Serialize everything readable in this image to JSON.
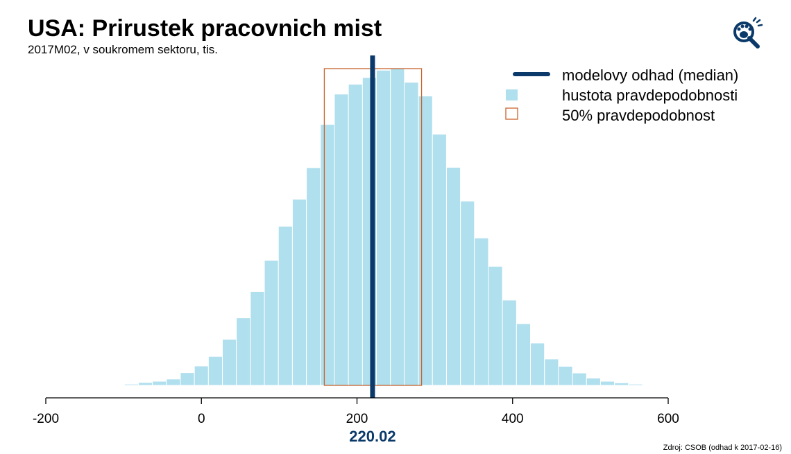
{
  "header": {
    "title": "USA: Prirustek pracovnich mist",
    "subtitle": "2017M02, v soukromem sektoru, tis."
  },
  "footer": {
    "source": "Zdroj: CSOB (odhad k 2017-02-16)"
  },
  "logo": {
    "icon": "bear-paw-magnifier-icon",
    "color": "#0b3a6a"
  },
  "colors": {
    "bars": "#b0dfee",
    "median": "#0b3a6a",
    "interval": "#c8642d",
    "axis": "#000000"
  },
  "chart_data": {
    "type": "bar",
    "xlim": [
      -200,
      600
    ],
    "xticks": [
      -200,
      0,
      200,
      400,
      600
    ],
    "xtick_labels": [
      "-200",
      "0",
      "200",
      "400",
      "600"
    ],
    "bin_width": 18,
    "bin_start": -117,
    "values": [
      0.2,
      0.4,
      0.9,
      1.3,
      2.0,
      4.0,
      6.1,
      9.1,
      14.5,
      21.2,
      29.5,
      39.3,
      50.0,
      58.5,
      68.4,
      82.0,
      91.5,
      94.6,
      96.7,
      99.0,
      99.5,
      95.2,
      90.9,
      78.9,
      68.5,
      57.9,
      46.3,
      37.4,
      26.8,
      19.4,
      13.3,
      8.3,
      6.0,
      3.9,
      2.3,
      1.3,
      0.8,
      0.4
    ],
    "median": 220.02,
    "median_label": "220.02",
    "interval_50": [
      158,
      283
    ],
    "legend": {
      "position": "top-right",
      "entries": [
        "modelovy odhad (median)",
        "hustota pravdepodobnosti",
        "50% pravdepodobnost"
      ]
    }
  }
}
